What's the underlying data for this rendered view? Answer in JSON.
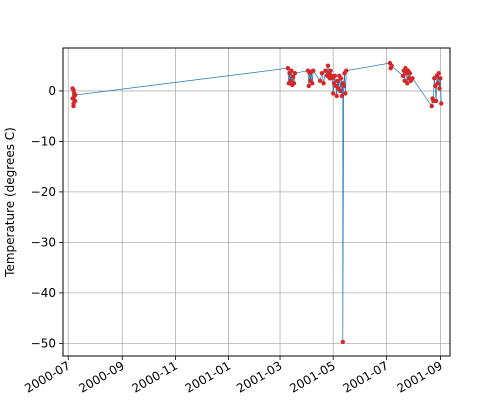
{
  "chart_data": {
    "type": "line",
    "title": "",
    "xlabel": "",
    "ylabel": "Temperature (degrees C)",
    "x_type": "date",
    "xlim": [
      "2000-06-25",
      "2001-09-12"
    ],
    "ylim": [
      -52.5,
      8.5
    ],
    "grid": true,
    "x_ticks": [
      {
        "value": "2000-07-01",
        "label": "2000-07"
      },
      {
        "value": "2000-09-01",
        "label": "2000-09"
      },
      {
        "value": "2000-11-01",
        "label": "2000-11"
      },
      {
        "value": "2001-01-01",
        "label": "2001-01"
      },
      {
        "value": "2001-03-01",
        "label": "2001-03"
      },
      {
        "value": "2001-05-01",
        "label": "2001-05"
      },
      {
        "value": "2001-07-01",
        "label": "2001-07"
      },
      {
        "value": "2001-09-01",
        "label": "2001-09"
      }
    ],
    "y_ticks": [
      {
        "value": 0,
        "label": "0"
      },
      {
        "value": -10,
        "label": "−10"
      },
      {
        "value": -20,
        "label": "−20"
      },
      {
        "value": -30,
        "label": "−30"
      },
      {
        "value": -40,
        "label": "−40"
      },
      {
        "value": -50,
        "label": "−50"
      }
    ],
    "line_color": "#1f77b4",
    "marker_color": "#d62728",
    "series": [
      {
        "x": [
          "2000-07-06",
          "2000-07-06",
          "2000-07-07",
          "2000-07-07",
          "2000-07-07",
          "2000-07-08",
          "2000-07-08",
          "2000-07-09",
          "2000-07-09",
          "2001-03-10",
          "2001-03-11",
          "2001-03-12",
          "2001-03-13",
          "2001-03-14",
          "2001-03-15",
          "2001-03-16",
          "2001-03-17",
          "2001-03-18",
          "2001-04-02",
          "2001-04-03",
          "2001-04-04",
          "2001-04-05",
          "2001-04-06",
          "2001-04-07",
          "2001-04-08",
          "2001-04-16",
          "2001-04-18",
          "2001-04-20",
          "2001-04-22",
          "2001-04-24",
          "2001-04-25",
          "2001-04-26",
          "2001-04-27",
          "2001-04-28",
          "2001-04-29",
          "2001-04-30",
          "2001-05-01",
          "2001-05-02",
          "2001-05-03",
          "2001-05-04",
          "2001-05-05",
          "2001-05-06",
          "2001-05-07",
          "2001-05-08",
          "2001-05-09",
          "2001-05-10",
          "2001-05-11",
          "2001-05-12",
          "2001-05-12",
          "2001-05-13",
          "2001-05-14",
          "2001-05-15",
          "2001-05-16",
          "2001-07-05",
          "2001-07-06",
          "2001-07-07",
          "2001-07-20",
          "2001-07-21",
          "2001-07-22",
          "2001-07-23",
          "2001-07-24",
          "2001-07-25",
          "2001-07-26",
          "2001-07-27",
          "2001-07-28",
          "2001-07-29",
          "2001-07-31",
          "2001-08-22",
          "2001-08-23",
          "2001-08-24",
          "2001-08-25",
          "2001-08-26",
          "2001-08-27",
          "2001-08-28",
          "2001-08-29",
          "2001-08-30",
          "2001-08-31",
          "2001-09-01",
          "2001-09-02"
        ],
        "y": [
          0.5,
          -1.5,
          -3.0,
          0.2,
          -2.5,
          -1.0,
          -0.5,
          -2.0,
          -0.8,
          4.5,
          1.5,
          3.5,
          2.0,
          4.0,
          1.2,
          2.8,
          1.5,
          3.5,
          4.0,
          1.0,
          3.5,
          2.0,
          3.8,
          1.5,
          4.0,
          2.0,
          3.5,
          1.5,
          4.0,
          3.0,
          5.0,
          3.5,
          2.5,
          4.0,
          3.0,
          2.5,
          -0.5,
          1.5,
          3.0,
          1.0,
          -1.0,
          2.0,
          0.5,
          3.0,
          0.0,
          2.5,
          -1.0,
          1.5,
          -49.7,
          1.0,
          3.5,
          -0.5,
          4.0,
          5.5,
          4.5,
          5.0,
          3.0,
          4.0,
          2.0,
          4.5,
          3.5,
          1.5,
          4.0,
          2.5,
          3.5,
          2.0,
          2.5,
          -3.0,
          -1.5,
          -2.0,
          2.5,
          1.0,
          -2.0,
          3.0,
          1.5,
          3.5,
          0.5,
          2.5,
          -2.5
        ]
      }
    ]
  }
}
